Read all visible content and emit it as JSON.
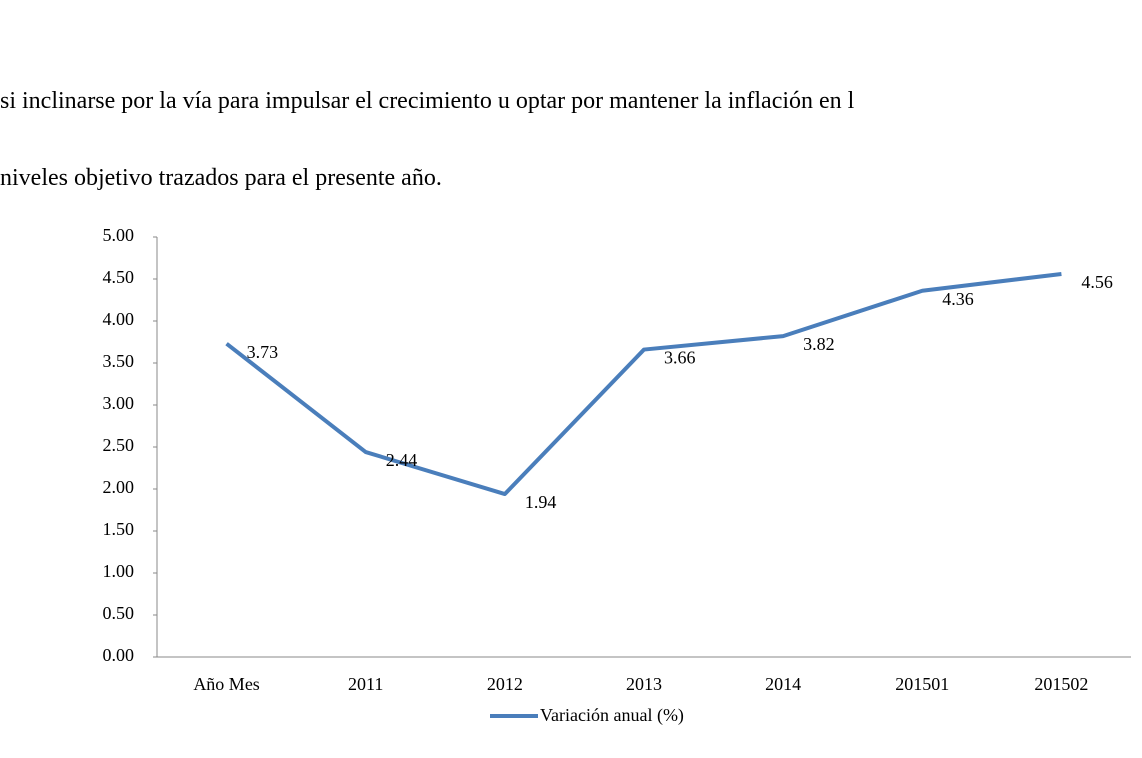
{
  "text": {
    "lines": [
      "si inclinarse por la vía para impulsar el crecimiento u optar por mantener la inflación en l",
      "niveles objetivo trazados para el presente año."
    ]
  },
  "chart_data": {
    "type": "line",
    "categories": [
      "Año Mes",
      "2011",
      "2012",
      "2013",
      "2014",
      "201501",
      "201502"
    ],
    "series": [
      {
        "name": "Variación anual (%)",
        "color": "#4a7ebb",
        "values": [
          3.73,
          2.44,
          1.94,
          3.66,
          3.82,
          4.36,
          4.56
        ]
      }
    ],
    "ylim": [
      0,
      5
    ],
    "yticks": [
      {
        "value": 0,
        "label": "0.00"
      },
      {
        "value": 0.5,
        "label": "0.50"
      },
      {
        "value": 1,
        "label": "1.00"
      },
      {
        "value": 1.5,
        "label": "1.50"
      },
      {
        "value": 2,
        "label": "2.00"
      },
      {
        "value": 2.5,
        "label": "2.50"
      },
      {
        "value": 3,
        "label": "3.00"
      },
      {
        "value": 3.5,
        "label": "3.50"
      },
      {
        "value": 4,
        "label": "4.00"
      },
      {
        "value": 4.5,
        "label": "4.50"
      },
      {
        "value": 5,
        "label": "5.00"
      }
    ],
    "legend": "bottom"
  }
}
